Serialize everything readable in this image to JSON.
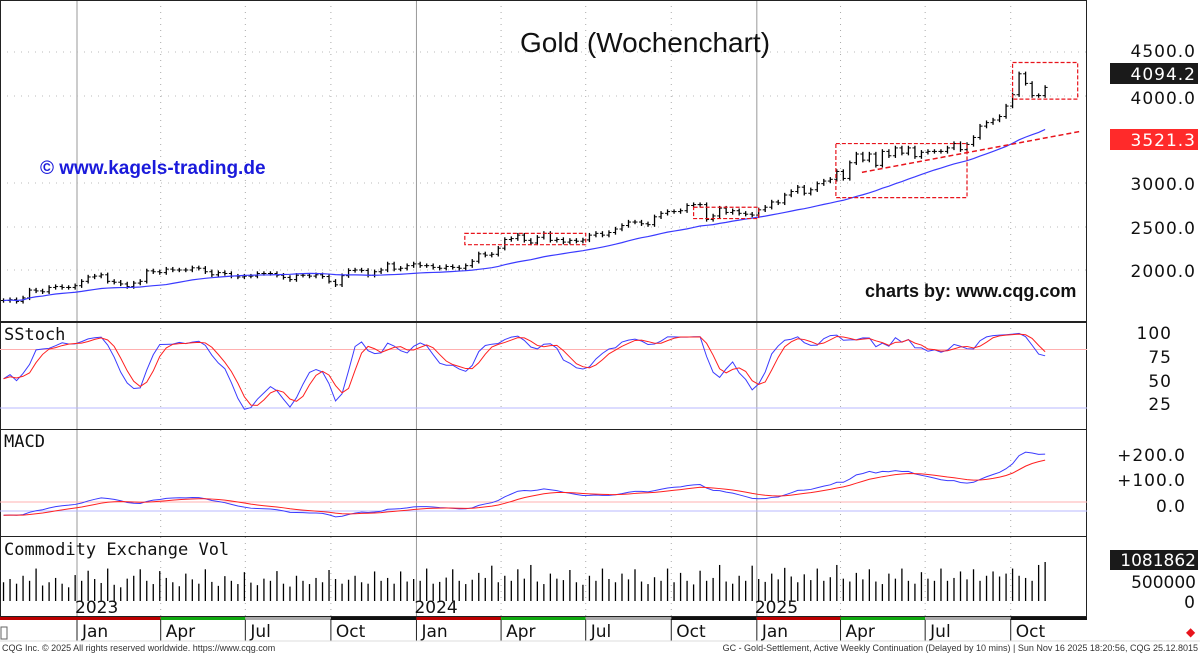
{
  "chart_data": {
    "type": "bar",
    "title": "Gold (Wochenchart)",
    "watermark_left": "© www.kagels-trading.de",
    "watermark_right": "charts by: www.cqg.com",
    "start_week": "2022-10-14",
    "weekly_close": [
      1650,
      1660,
      1640,
      1680,
      1770,
      1760,
      1750,
      1800,
      1810,
      1800,
      1800,
      1820,
      1870,
      1920,
      1930,
      1945,
      1870,
      1860,
      1840,
      1810,
      1850,
      1870,
      1990,
      1980,
      1970,
      2010,
      2000,
      2000,
      2000,
      2025,
      2020,
      1980,
      1945,
      1970,
      1960,
      1930,
      1920,
      1930,
      1930,
      1960,
      1960,
      1960,
      1940,
      1915,
      1890,
      1940,
      1940,
      1930,
      1945,
      1925,
      1870,
      1830,
      1935,
      1995,
      2000,
      1995,
      1940,
      1980,
      2000,
      2070,
      2010,
      2020,
      2050,
      2070,
      2050,
      2050,
      2030,
      2020,
      2040,
      2030,
      2020,
      2050,
      2100,
      2185,
      2170,
      2180,
      2250,
      2350,
      2360,
      2400,
      2340,
      2310,
      2375,
      2420,
      2340,
      2350,
      2320,
      2340,
      2330,
      2345,
      2400,
      2420,
      2400,
      2430,
      2470,
      2510,
      2550,
      2550,
      2530,
      2520,
      2610,
      2650,
      2670,
      2670,
      2680,
      2740,
      2750,
      2750,
      2580,
      2620,
      2710,
      2660,
      2680,
      2650,
      2640,
      2630,
      2690,
      2720,
      2780,
      2770,
      2860,
      2900,
      2950,
      2880,
      2920,
      2990,
      3020,
      3040,
      3130,
      3050,
      3230,
      3330,
      3260,
      3330,
      3200,
      3360,
      3310,
      3400,
      3340,
      3400,
      3300,
      3350,
      3360,
      3360,
      3360,
      3400,
      3450,
      3380,
      3440,
      3520,
      3650,
      3690,
      3720,
      3760,
      3880,
      4010,
      4250,
      4140,
      4000,
      4000,
      4094
    ],
    "weekly_volume": [
      520,
      610,
      480,
      700,
      560,
      900,
      430,
      520,
      640,
      480,
      380,
      720,
      560,
      840,
      610,
      500,
      900,
      450,
      380,
      620,
      700,
      880,
      560,
      470,
      830,
      640,
      520,
      410,
      760,
      600,
      480,
      880,
      530,
      420,
      690,
      560,
      470,
      800,
      510,
      440,
      620,
      560,
      830,
      480,
      400,
      700,
      560,
      470,
      640,
      520,
      860,
      610,
      480,
      590,
      700,
      520,
      480,
      820,
      560,
      640,
      480,
      820,
      540,
      610,
      560,
      900,
      480,
      530,
      650,
      880,
      560,
      470,
      590,
      780,
      640,
      980,
      520,
      700,
      560,
      880,
      620,
      1000,
      540,
      470,
      760,
      620,
      580,
      860,
      520,
      450,
      700,
      560,
      900,
      610,
      520,
      760,
      600,
      880,
      540,
      470,
      660,
      560,
      900,
      520,
      780,
      560,
      460,
      840,
      560,
      640,
      1000,
      540,
      480,
      700,
      560,
      980,
      610,
      530,
      760,
      600,
      920,
      680,
      520,
      740,
      580,
      900,
      560,
      660,
      1000,
      620,
      540,
      780,
      600,
      880,
      540,
      470,
      760,
      620,
      900,
      560,
      480,
      800,
      620,
      560,
      900,
      560,
      640,
      820,
      600,
      880,
      560,
      700,
      820,
      680,
      760,
      900,
      700,
      640,
      560,
      1000,
      1082
    ],
    "volume_units": "thousands",
    "price_axis": {
      "ticks": [
        "4500.0",
        "4000.0",
        "3000.0",
        "2500.0",
        "2000.0"
      ],
      "ylim": [
        1700,
        4600
      ]
    },
    "last_price_label": "4094.2",
    "trend_price_label": "3521.3",
    "stoch": {
      "title": "SStoch",
      "ticks": [
        "100",
        "75",
        "50",
        "25"
      ],
      "levels": [
        80,
        20
      ]
    },
    "macd": {
      "title": "MACD",
      "ticks": [
        "+200.0",
        "+100.0",
        "0.0"
      ]
    },
    "volume": {
      "title": "Commodity Exchange Vol",
      "ticks": [
        "500000",
        "0"
      ],
      "last_label": "1081862"
    },
    "year_labels": [
      {
        "date": "2023-01-01",
        "label": "2023"
      },
      {
        "date": "2024-01-01",
        "label": "2024"
      },
      {
        "date": "2025-01-01",
        "label": "2025"
      }
    ],
    "month_labels": [
      {
        "date": "2023-01-01",
        "label": "Jan"
      },
      {
        "date": "2023-04-01",
        "label": "Apr"
      },
      {
        "date": "2023-07-01",
        "label": "Jul"
      },
      {
        "date": "2023-10-01",
        "label": "Oct"
      },
      {
        "date": "2024-01-01",
        "label": "Jan"
      },
      {
        "date": "2024-04-01",
        "label": "Apr"
      },
      {
        "date": "2024-07-01",
        "label": "Jul"
      },
      {
        "date": "2024-10-01",
        "label": "Oct"
      },
      {
        "date": "2025-01-01",
        "label": "Jan"
      },
      {
        "date": "2025-04-01",
        "label": "Apr"
      },
      {
        "date": "2025-07-01",
        "label": "Jul"
      },
      {
        "date": "2025-10-01",
        "label": "Oct"
      }
    ],
    "annotations": {
      "boxes": [
        {
          "from": "2024-02-22",
          "to": "2024-07-01",
          "high": 2420,
          "low": 2290
        },
        {
          "from": "2024-10-25",
          "to": "2025-01-03",
          "high": 2720,
          "low": 2590
        },
        {
          "from": "2025-03-27",
          "to": "2025-08-15",
          "high": 3450,
          "low": 2830
        },
        {
          "from": "2025-10-03",
          "to": "2025-12-12",
          "high": 4380,
          "low": 3960
        }
      ],
      "trendline": {
        "from": "2025-04-24",
        "from_price": 3120,
        "to": "2025-12-15",
        "to_price": 3590
      }
    },
    "colors": {
      "bars": "#000000",
      "ma": "#3b3bff",
      "stoch_k": "#3b3bff",
      "stoch_d": "#ff2020",
      "annotation": "#e8141c",
      "last_price_bg": "#1a1a1a",
      "trend_price_bg": "#ff2a2a",
      "watermark": "#1a1adb"
    }
  },
  "footer": {
    "left": "CQG Inc. © 2025 All rights reserved worldwide. https://www.cqg.com",
    "right": "GC - Gold-Settlement, Active Weekly Continuation (Delayed by 10 mins) | Sun Nov 16 2025 18:20:56, CQG 25.12.8015"
  }
}
